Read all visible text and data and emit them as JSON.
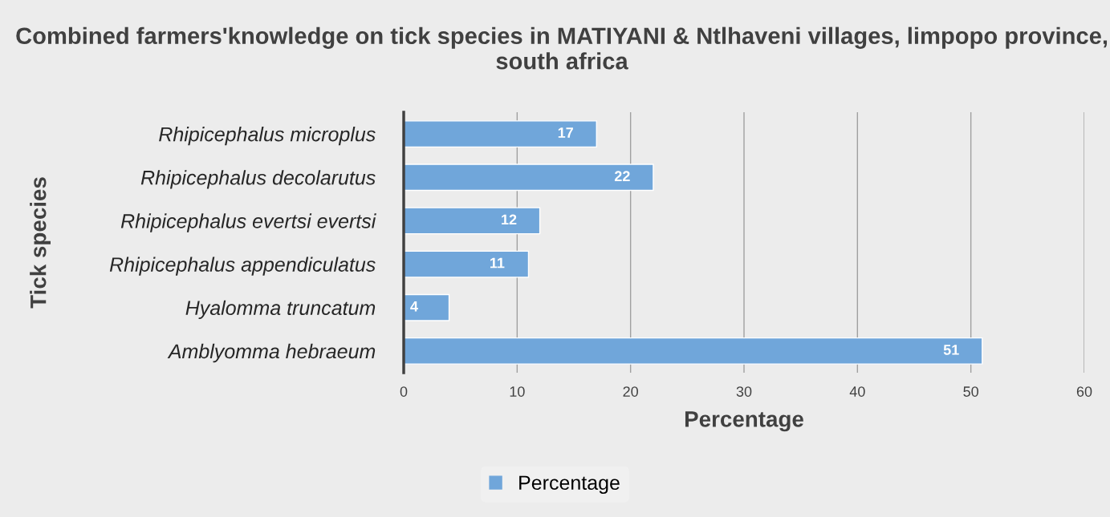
{
  "chart_data": {
    "type": "bar",
    "orientation": "horizontal",
    "title": "Combined farmers'knowledge on tick species in MATIYANI & Ntlhaveni villages, limpopo province, south africa",
    "xlabel": "Percentage",
    "ylabel": "Tick species",
    "categories": [
      "Rhipicephalus microplus",
      "Rhipicephalus decolarutus",
      "Rhipicephalus evertsi evertsi",
      "Rhipicephalus appendiculatus",
      "Hyalomma truncatum",
      "Amblyomma hebraeum"
    ],
    "series": [
      {
        "name": "Percentage",
        "color": "#70a6da",
        "values": [
          17,
          22,
          12,
          11,
          4,
          51
        ]
      }
    ],
    "xlim": [
      0,
      60
    ],
    "xticks": [
      0,
      10,
      20,
      30,
      40,
      50,
      60
    ],
    "grid": "x",
    "legend": "bottom",
    "data_labels": true
  }
}
